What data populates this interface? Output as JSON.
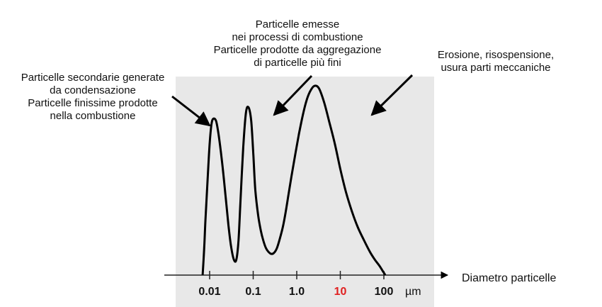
{
  "chart_data": {
    "type": "line",
    "xscale": "log",
    "xlabel": "Diametro  particelle",
    "x_unit": "µm",
    "x_ticks": [
      {
        "value": 0.01,
        "label": "0.01",
        "color": "#111111"
      },
      {
        "value": 0.1,
        "label": "0.1",
        "color": "#111111"
      },
      {
        "value": 1.0,
        "label": "1.0",
        "color": "#111111"
      },
      {
        "value": 10,
        "label": "10",
        "color": "#e02020"
      },
      {
        "value": 100,
        "label": "100",
        "color": "#111111"
      }
    ],
    "xlim": [
      0.005,
      300
    ],
    "ylim": [
      0,
      1
    ],
    "y_axis_shown": false,
    "series": [
      {
        "color": "#000000",
        "x": [
          0.0069,
          0.0075,
          0.008,
          0.009,
          0.01,
          0.011,
          0.012,
          0.014,
          0.016,
          0.019,
          0.023,
          0.027,
          0.031,
          0.036,
          0.041,
          0.046,
          0.051,
          0.059,
          0.068,
          0.078,
          0.09,
          0.101,
          0.112,
          0.13,
          0.15,
          0.17,
          0.196,
          0.225,
          0.26,
          0.3,
          0.35,
          0.41,
          0.48,
          0.56,
          0.66,
          0.78,
          0.93,
          1.12,
          1.35,
          1.65,
          2.0,
          2.5,
          3.2,
          4.2,
          5.5,
          7.5,
          10,
          13.5,
          18.5,
          25,
          35,
          48,
          62,
          78,
          95,
          108
        ],
        "y": [
          0.0,
          0.14,
          0.28,
          0.5,
          0.68,
          0.78,
          0.81,
          0.8,
          0.73,
          0.6,
          0.42,
          0.26,
          0.15,
          0.08,
          0.08,
          0.18,
          0.38,
          0.66,
          0.84,
          0.87,
          0.8,
          0.62,
          0.44,
          0.31,
          0.23,
          0.18,
          0.14,
          0.12,
          0.11,
          0.115,
          0.14,
          0.19,
          0.25,
          0.33,
          0.43,
          0.53,
          0.63,
          0.73,
          0.82,
          0.9,
          0.95,
          0.98,
          0.97,
          0.9,
          0.8,
          0.68,
          0.55,
          0.43,
          0.33,
          0.25,
          0.18,
          0.12,
          0.08,
          0.05,
          0.02,
          0.0
        ]
      }
    ],
    "annotations": [
      {
        "lines": [
          "Particelle secondarie generate",
          "da condensazione",
          "Particelle finissime prodotte",
          "nella combustione"
        ],
        "target": {
          "x": 0.0125,
          "y": 0.81
        }
      },
      {
        "lines": [
          "Particelle emesse",
          "nei processi di combustione",
          "Particelle prodotte da aggregazione",
          "di particelle più fini"
        ],
        "target": {
          "x": 0.12,
          "y": 0.8
        }
      },
      {
        "lines": [
          "Erosione, risospensione,",
          "usura parti meccaniche"
        ],
        "target": {
          "x": 40,
          "y": 0.76
        }
      }
    ],
    "plot_background": "#e8e8e8",
    "grid": false,
    "legend": "none"
  }
}
